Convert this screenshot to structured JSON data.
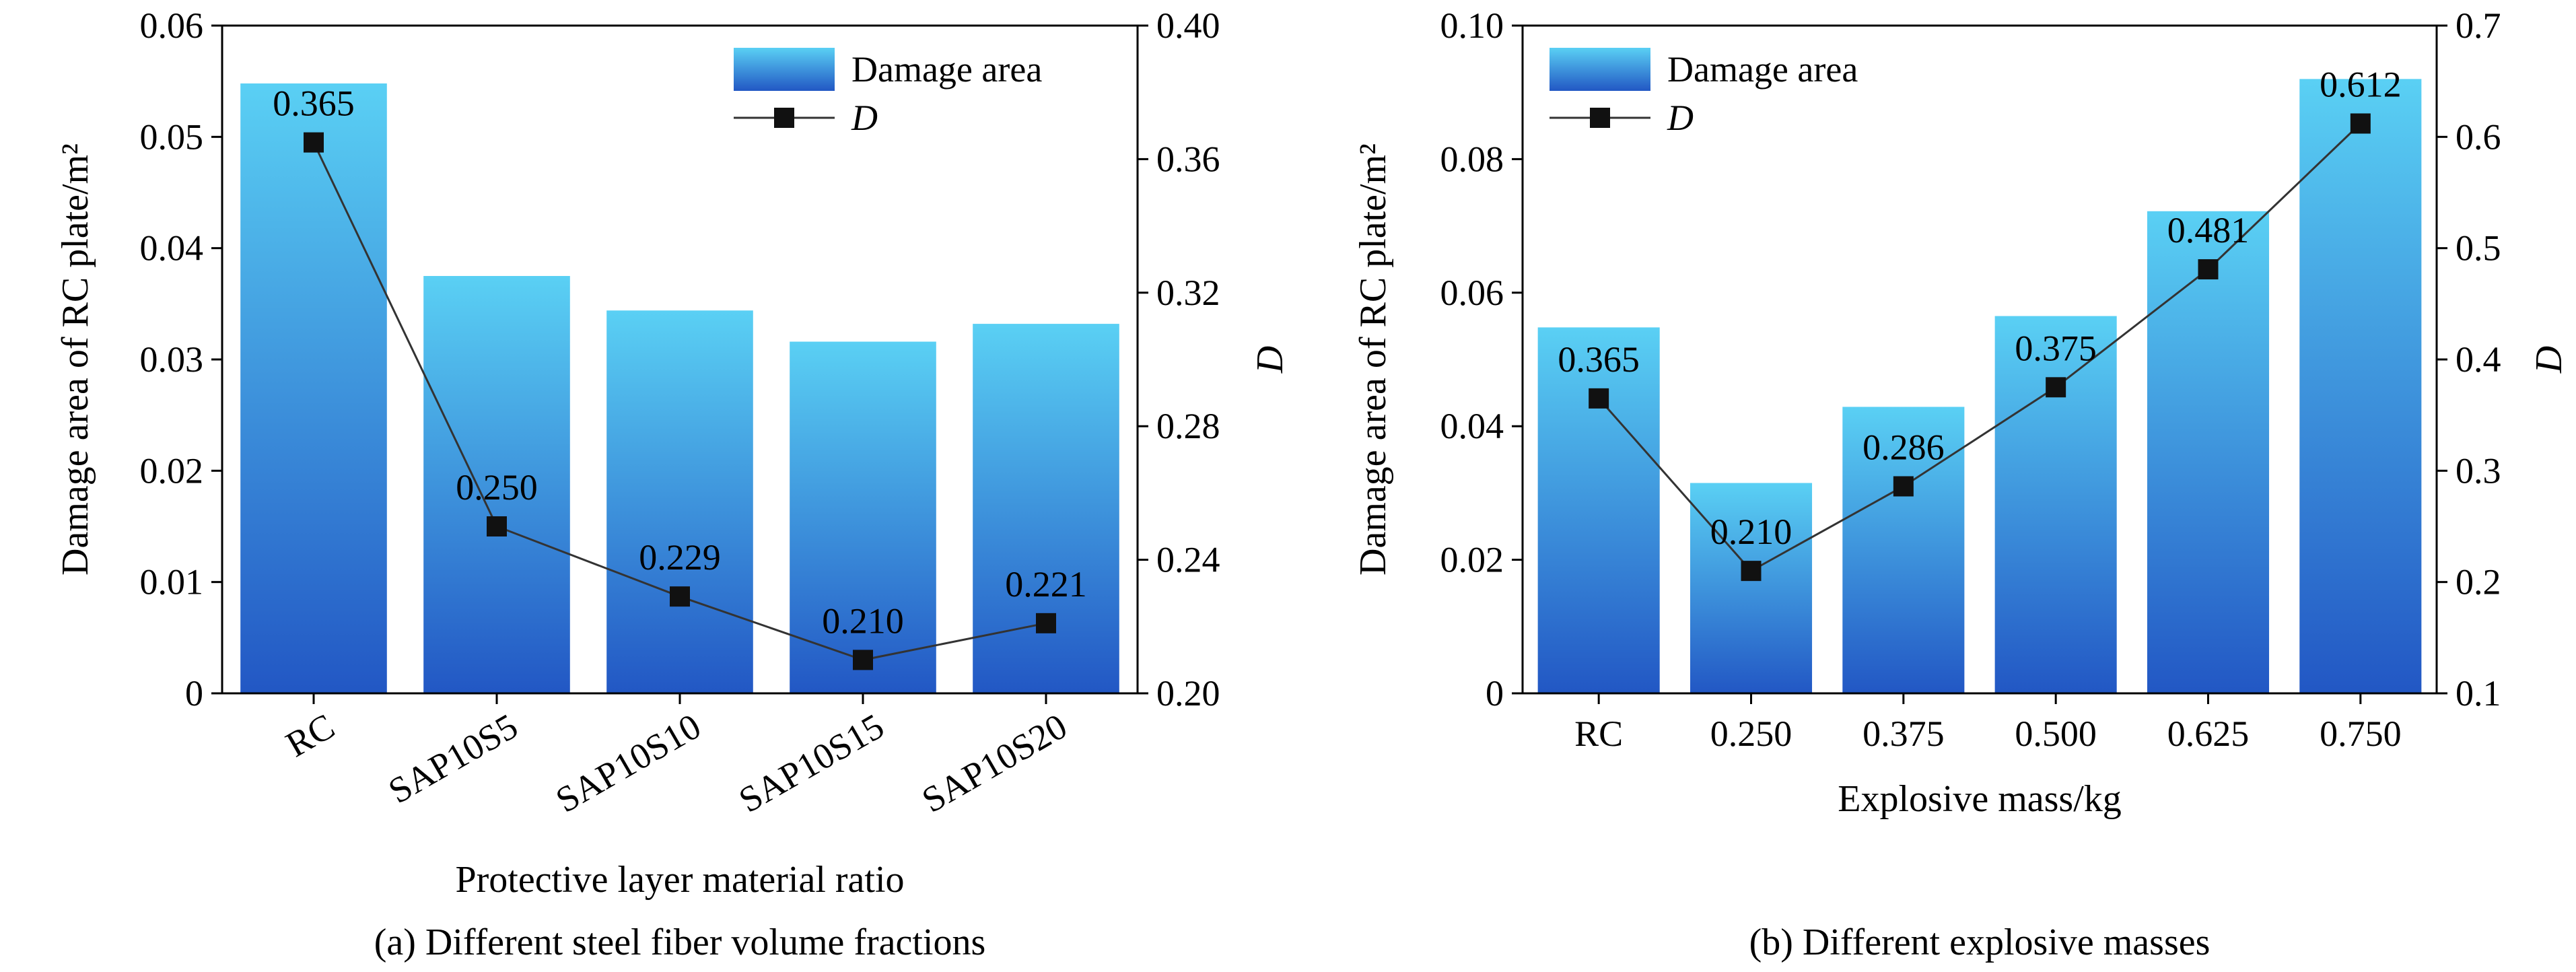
{
  "colors": {
    "bar_top": "#5ad0f4",
    "bar_bottom": "#2257c4",
    "line": "#333333",
    "marker": "#111111",
    "axis": "#000000"
  },
  "chart_data": [
    {
      "type": "bar",
      "panel_caption": "(a) Different steel fiber volume fractions",
      "xlabel": "Protective layer material ratio",
      "ylabel": "Damage area of RC plate/m²",
      "ylabel_right": "D",
      "categories": [
        "RC",
        "SAP10S5",
        "SAP10S10",
        "SAP10S15",
        "SAP10S20"
      ],
      "category_label_rotation": -30,
      "series": [
        {
          "name": "Damage area",
          "kind": "bar",
          "axis": "left",
          "values": [
            0.0548,
            0.0375,
            0.0344,
            0.0316,
            0.0332
          ]
        },
        {
          "name": "D",
          "kind": "line",
          "axis": "right",
          "marker": "square",
          "values": [
            0.365,
            0.25,
            0.229,
            0.21,
            0.221
          ],
          "labels": [
            "0.365",
            "0.250",
            "0.229",
            "0.210",
            "0.221"
          ]
        }
      ],
      "ylim": [
        0,
        0.06
      ],
      "yticks": [
        0,
        0.01,
        0.02,
        0.03,
        0.04,
        0.05,
        0.06
      ],
      "ytick_labels": [
        "0",
        "0.01",
        "0.02",
        "0.03",
        "0.04",
        "0.05",
        "0.06"
      ],
      "ylim_right": [
        0.2,
        0.4
      ],
      "yticks_right": [
        0.2,
        0.24,
        0.28,
        0.32,
        0.36,
        0.4
      ],
      "ytick_labels_right": [
        "0.20",
        "0.24",
        "0.28",
        "0.32",
        "0.36",
        "0.40"
      ],
      "legend_position": "top-right",
      "grid": false
    },
    {
      "type": "bar",
      "panel_caption": "(b) Different explosive masses",
      "xlabel": "Explosive mass/kg",
      "ylabel": "Damage area of RC plate/m²",
      "ylabel_right": "D",
      "categories": [
        "RC",
        "0.250",
        "0.375",
        "0.500",
        "0.625",
        "0.750"
      ],
      "category_label_rotation": 0,
      "series": [
        {
          "name": "Damage area",
          "kind": "bar",
          "axis": "left",
          "values": [
            0.0548,
            0.0315,
            0.0429,
            0.0565,
            0.0722,
            0.092
          ]
        },
        {
          "name": "D",
          "kind": "line",
          "axis": "right",
          "marker": "square",
          "values": [
            0.365,
            0.21,
            0.286,
            0.375,
            0.481,
            0.612
          ],
          "labels": [
            "0.365",
            "0.210",
            "0.286",
            "0.375",
            "0.481",
            "0.612"
          ]
        }
      ],
      "ylim": [
        0,
        0.1
      ],
      "yticks": [
        0,
        0.02,
        0.04,
        0.06,
        0.08,
        0.1
      ],
      "ytick_labels": [
        "0",
        "0.02",
        "0.04",
        "0.06",
        "0.08",
        "0.10"
      ],
      "ylim_right": [
        0.1,
        0.7
      ],
      "yticks_right": [
        0.1,
        0.2,
        0.3,
        0.4,
        0.5,
        0.6,
        0.7
      ],
      "ytick_labels_right": [
        "0.1",
        "0.2",
        "0.3",
        "0.4",
        "0.5",
        "0.6",
        "0.7"
      ],
      "legend_position": "top-left",
      "grid": false
    }
  ]
}
